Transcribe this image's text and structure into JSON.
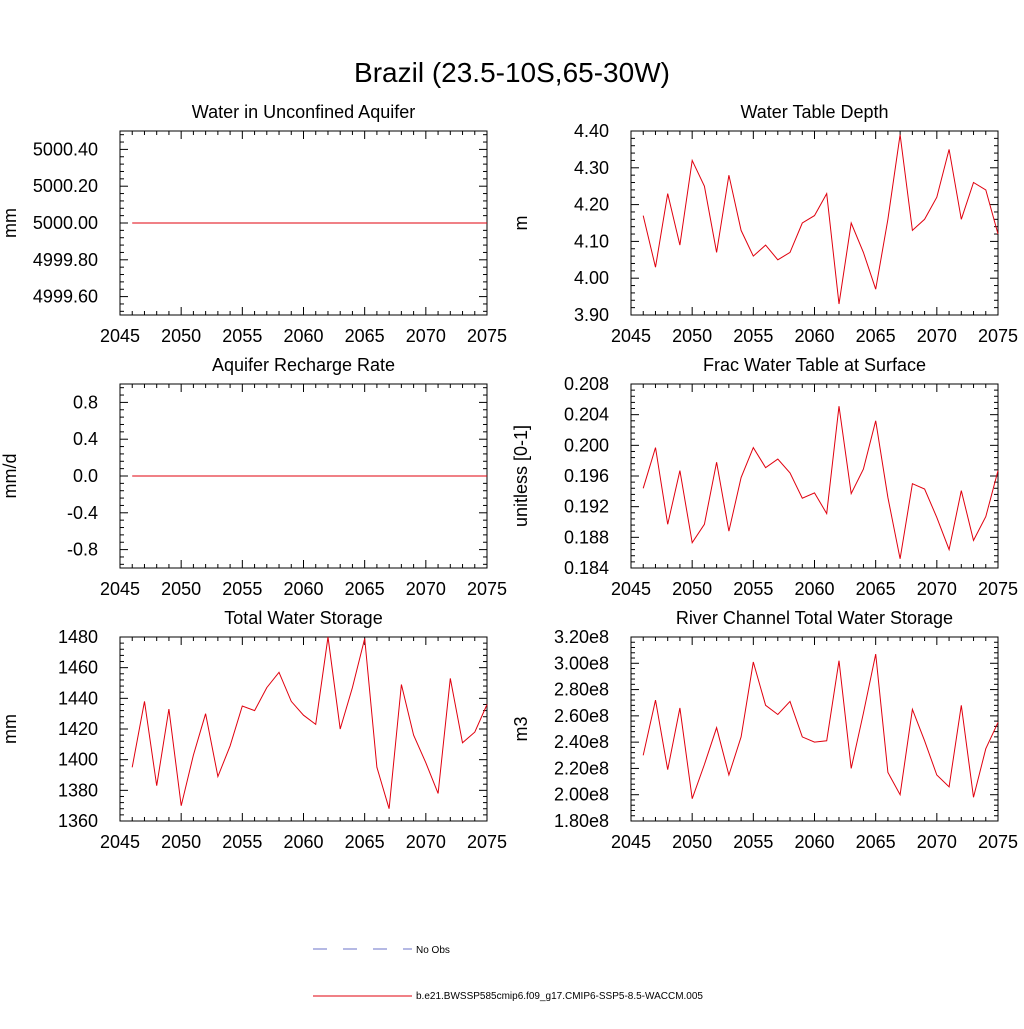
{
  "figure_title": "Brazil (23.5-10S,65-30W)",
  "legend": {
    "obs_label": "No Obs",
    "obs_color": "#6b73c8",
    "model_label": "b.e21.BWSSP585cmip6.f09_g17.CMIP6-SSP5-8.5-WACCM.005",
    "model_color": "#e0000e"
  },
  "chart_data": [
    {
      "type": "line",
      "title": "Water in Unconfined Aquifer",
      "ylabel": "mm",
      "xlim": [
        2045,
        2075
      ],
      "ylim": [
        4999.5,
        5000.5
      ],
      "xticks": [
        2045,
        2050,
        2055,
        2060,
        2065,
        2070,
        2075
      ],
      "yticks": [
        "4999.60",
        "4999.80",
        "5000.00",
        "5000.20",
        "5000.40"
      ],
      "x": [
        2046,
        2047,
        2048,
        2049,
        2050,
        2051,
        2052,
        2053,
        2054,
        2055,
        2056,
        2057,
        2058,
        2059,
        2060,
        2061,
        2062,
        2063,
        2064,
        2065,
        2066,
        2067,
        2068,
        2069,
        2070,
        2071,
        2072,
        2073,
        2074,
        2075
      ],
      "series": [
        {
          "values": [
            5000,
            5000,
            5000,
            5000,
            5000,
            5000,
            5000,
            5000,
            5000,
            5000,
            5000,
            5000,
            5000,
            5000,
            5000,
            5000,
            5000,
            5000,
            5000,
            5000,
            5000,
            5000,
            5000,
            5000,
            5000,
            5000,
            5000,
            5000,
            5000,
            5000
          ]
        }
      ]
    },
    {
      "type": "line",
      "title": "Water Table Depth",
      "ylabel": "m",
      "xlim": [
        2045,
        2075
      ],
      "ylim": [
        3.9,
        4.4
      ],
      "xticks": [
        2045,
        2050,
        2055,
        2060,
        2065,
        2070,
        2075
      ],
      "yticks": [
        "3.90",
        "4.00",
        "4.10",
        "4.20",
        "4.30",
        "4.40"
      ],
      "x": [
        2046,
        2047,
        2048,
        2049,
        2050,
        2051,
        2052,
        2053,
        2054,
        2055,
        2056,
        2057,
        2058,
        2059,
        2060,
        2061,
        2062,
        2063,
        2064,
        2065,
        2066,
        2067,
        2068,
        2069,
        2070,
        2071,
        2072,
        2073,
        2074,
        2075
      ],
      "series": [
        {
          "values": [
            4.17,
            4.03,
            4.23,
            4.09,
            4.32,
            4.25,
            4.07,
            4.28,
            4.13,
            4.06,
            4.09,
            4.05,
            4.07,
            4.15,
            4.17,
            4.23,
            3.93,
            4.15,
            4.07,
            3.97,
            4.16,
            4.39,
            4.13,
            4.16,
            4.22,
            4.35,
            4.16,
            4.26,
            4.24,
            4.12
          ]
        }
      ]
    },
    {
      "type": "line",
      "title": "Aquifer Recharge Rate",
      "ylabel": "mm/d",
      "xlim": [
        2045,
        2075
      ],
      "ylim": [
        -1.0,
        1.0
      ],
      "xticks": [
        2045,
        2050,
        2055,
        2060,
        2065,
        2070,
        2075
      ],
      "yticks": [
        "-0.8",
        "-0.4",
        "0.0",
        "0.4",
        "0.8"
      ],
      "x": [
        2046,
        2047,
        2048,
        2049,
        2050,
        2051,
        2052,
        2053,
        2054,
        2055,
        2056,
        2057,
        2058,
        2059,
        2060,
        2061,
        2062,
        2063,
        2064,
        2065,
        2066,
        2067,
        2068,
        2069,
        2070,
        2071,
        2072,
        2073,
        2074,
        2075
      ],
      "series": [
        {
          "values": [
            0,
            0,
            0,
            0,
            0,
            0,
            0,
            0,
            0,
            0,
            0,
            0,
            0,
            0,
            0,
            0,
            0,
            0,
            0,
            0,
            0,
            0,
            0,
            0,
            0,
            0,
            0,
            0,
            0,
            0
          ]
        }
      ]
    },
    {
      "type": "line",
      "title": "Frac Water Table at Surface",
      "ylabel": "unitless [0-1]",
      "xlim": [
        2045,
        2075
      ],
      "ylim": [
        0.184,
        0.208
      ],
      "xticks": [
        2045,
        2050,
        2055,
        2060,
        2065,
        2070,
        2075
      ],
      "yticks": [
        "0.184",
        "0.188",
        "0.192",
        "0.196",
        "0.200",
        "0.204",
        "0.208"
      ],
      "x": [
        2046,
        2047,
        2048,
        2049,
        2050,
        2051,
        2052,
        2053,
        2054,
        2055,
        2056,
        2057,
        2058,
        2059,
        2060,
        2061,
        2062,
        2063,
        2064,
        2065,
        2066,
        2067,
        2068,
        2069,
        2070,
        2071,
        2072,
        2073,
        2074,
        2075
      ],
      "series": [
        {
          "values": [
            0.1944,
            0.1997,
            0.1897,
            0.1967,
            0.1873,
            0.1897,
            0.1978,
            0.1888,
            0.1958,
            0.1997,
            0.1971,
            0.1982,
            0.1964,
            0.1931,
            0.1938,
            0.1911,
            0.2051,
            0.1937,
            0.1969,
            0.2032,
            0.1932,
            0.1852,
            0.195,
            0.1943,
            0.1906,
            0.1864,
            0.1941,
            0.1876,
            0.1907,
            0.1967
          ]
        }
      ]
    },
    {
      "type": "line",
      "title": "Total Water Storage",
      "ylabel": "mm",
      "xlim": [
        2045,
        2075
      ],
      "ylim": [
        1360,
        1480
      ],
      "xticks": [
        2045,
        2050,
        2055,
        2060,
        2065,
        2070,
        2075
      ],
      "yticks": [
        "1360",
        "1380",
        "1400",
        "1420",
        "1440",
        "1460",
        "1480"
      ],
      "x": [
        2046,
        2047,
        2048,
        2049,
        2050,
        2051,
        2052,
        2053,
        2054,
        2055,
        2056,
        2057,
        2058,
        2059,
        2060,
        2061,
        2062,
        2063,
        2064,
        2065,
        2066,
        2067,
        2068,
        2069,
        2070,
        2071,
        2072,
        2073,
        2074,
        2075
      ],
      "series": [
        {
          "values": [
            1395,
            1438,
            1383,
            1433,
            1370,
            1403,
            1430,
            1389,
            1409,
            1435,
            1432,
            1447,
            1457,
            1438,
            1429,
            1423,
            1480,
            1420,
            1447,
            1479,
            1395,
            1368,
            1449,
            1416,
            1398,
            1378,
            1453,
            1411,
            1418,
            1436
          ]
        }
      ]
    },
    {
      "type": "line",
      "title": "River Channel Total Water Storage",
      "ylabel": "m3",
      "xlim": [
        2045,
        2075
      ],
      "ylim": [
        180000000,
        320000000
      ],
      "xticks": [
        2045,
        2050,
        2055,
        2060,
        2065,
        2070,
        2075
      ],
      "yticks": [
        "1.80e8",
        "2.00e8",
        "2.20e8",
        "2.40e8",
        "2.60e8",
        "2.80e8",
        "3.00e8",
        "3.20e8"
      ],
      "x": [
        2046,
        2047,
        2048,
        2049,
        2050,
        2051,
        2052,
        2053,
        2054,
        2055,
        2056,
        2057,
        2058,
        2059,
        2060,
        2061,
        2062,
        2063,
        2064,
        2065,
        2066,
        2067,
        2068,
        2069,
        2070,
        2071,
        2072,
        2073,
        2074,
        2075
      ],
      "series": [
        {
          "values": [
            230000000,
            272000000,
            219000000,
            266000000,
            197000000,
            223000000,
            251000000,
            215000000,
            244000000,
            301000000,
            268000000,
            261000000,
            271000000,
            244000000,
            240000000,
            241000000,
            302000000,
            220000000,
            262000000,
            307000000,
            217000000,
            200000000,
            265000000,
            241000000,
            215000000,
            206000000,
            268000000,
            198000000,
            235000000,
            255000000
          ]
        }
      ]
    }
  ]
}
